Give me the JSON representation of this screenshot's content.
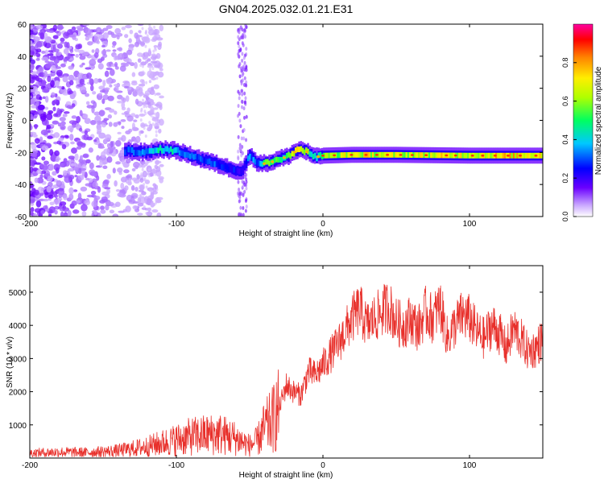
{
  "title": "GN04.2025.032.01.21.E31",
  "colors": {
    "snr_line": "#e8302b",
    "colormap": [
      "#ffffff",
      "#9b30ff",
      "#5b00e0",
      "#0000ff",
      "#00c8ff",
      "#00ff60",
      "#b0ff00",
      "#ffee00",
      "#ff8000",
      "#ff0000",
      "#ff00a0"
    ]
  },
  "chart_data": [
    {
      "type": "heatmap",
      "xlabel": "Height of straight line (km)",
      "ylabel": "Frequency (Hz)",
      "xlim": [
        -200,
        150
      ],
      "ylim": [
        -60,
        60
      ],
      "x_ticks": [
        -200,
        -100,
        0,
        100
      ],
      "y_ticks": [
        -60,
        -40,
        -20,
        0,
        20,
        40,
        60
      ],
      "colorbar": {
        "label": "Normalized spectral amplitude",
        "range": [
          0,
          1
        ],
        "ticks": [
          "0.0",
          "0.2",
          "0.4",
          "0.6",
          "0.8"
        ]
      },
      "signal_track": {
        "x": [
          -135,
          -120,
          -110,
          -100,
          -90,
          -80,
          -70,
          -60,
          -55,
          -50,
          -45,
          -40,
          -35,
          -30,
          -25,
          -20,
          -15,
          -10,
          -5,
          0,
          20,
          50,
          100,
          150
        ],
        "freq_hz": [
          -19,
          -20,
          -18,
          -19,
          -22,
          -25,
          -28,
          -31,
          -32,
          -22,
          -26,
          -27,
          -26,
          -24,
          -23,
          -20,
          -18,
          -20,
          -23,
          -22,
          -21.5,
          -21.5,
          -22,
          -22
        ],
        "amplitude": [
          0.3,
          0.35,
          0.45,
          0.4,
          0.3,
          0.3,
          0.3,
          0.25,
          0.2,
          0.35,
          0.3,
          0.5,
          0.6,
          0.55,
          0.5,
          0.65,
          0.75,
          0.55,
          0.45,
          0.55,
          0.7,
          0.65,
          0.7,
          0.75
        ]
      },
      "noise_region_x": [
        -200,
        -120
      ],
      "noise_streak_x": [
        -58,
        -52
      ]
    },
    {
      "type": "line",
      "xlabel": "Height of straight line (km)",
      "ylabel": "SNR (10 * v/v)",
      "xlim": [
        -200,
        150
      ],
      "ylim": [
        0,
        5800
      ],
      "x_ticks": [
        -200,
        -100,
        0,
        100
      ],
      "y_ticks": [
        1000,
        2000,
        3000,
        4000,
        5000
      ],
      "series": [
        {
          "x": [
            -200,
            -180,
            -160,
            -140,
            -130,
            -120,
            -110,
            -100,
            -90,
            -80,
            -70,
            -60,
            -50,
            -45,
            -40,
            -35,
            -30,
            -25,
            -20,
            -15,
            -10,
            -5,
            0,
            5,
            10,
            15,
            20,
            25,
            30,
            35,
            40,
            45,
            50,
            55,
            60,
            65,
            70,
            75,
            80,
            85,
            90,
            95,
            100,
            105,
            110,
            115,
            120,
            125,
            130,
            135,
            140,
            145,
            150
          ],
          "values": [
            150,
            180,
            170,
            220,
            280,
            350,
            450,
            550,
            650,
            700,
            720,
            600,
            380,
            500,
            900,
            1100,
            1500,
            2200,
            2000,
            1900,
            2600,
            2500,
            2800,
            3100,
            3400,
            3800,
            4200,
            4500,
            4000,
            4200,
            4400,
            4600,
            4100,
            4000,
            4200,
            3900,
            4400,
            4200,
            4600,
            3600,
            4000,
            4300,
            4200,
            3800,
            3600,
            4000,
            3800,
            3300,
            3900,
            3600,
            3200,
            3300,
            3600
          ]
        }
      ]
    }
  ]
}
